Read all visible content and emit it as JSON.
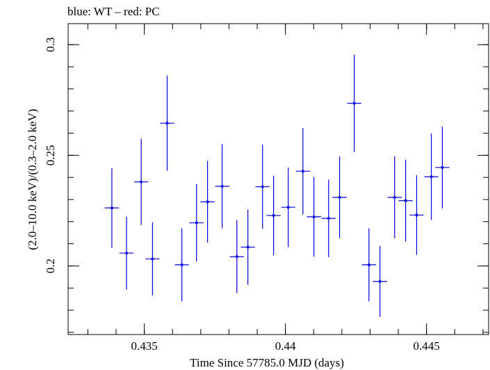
{
  "chart_data": {
    "type": "scatter",
    "title": "blue: WT – red: PC",
    "xlabel": "Time Since 57785.0 MJD (days)",
    "ylabel": "(2.0–10.0 keV)/(0.3–2.0 keV)",
    "xlim": [
      0.4323,
      0.4472
    ],
    "ylim": [
      0.169,
      0.3095
    ],
    "x_ticks": [
      {
        "value": 0.435,
        "label": "0.435"
      },
      {
        "value": 0.44,
        "label": "0.44"
      },
      {
        "value": 0.445,
        "label": "0.445"
      }
    ],
    "x_minor_step": 0.001,
    "y_ticks": [
      {
        "value": 0.2,
        "label": "0.2"
      },
      {
        "value": 0.25,
        "label": "0.25"
      },
      {
        "value": 0.3,
        "label": "0.3"
      }
    ],
    "y_minor_step": 0.01,
    "grid": false,
    "series": [
      {
        "color": "#0000dd",
        "x_half_width": 0.00025,
        "points": [
          {
            "x": 0.43385,
            "y": 0.2262,
            "yerr": 0.018
          },
          {
            "x": 0.43437,
            "y": 0.2058,
            "yerr": 0.0165
          },
          {
            "x": 0.43489,
            "y": 0.238,
            "yerr": 0.0195
          },
          {
            "x": 0.43529,
            "y": 0.2032,
            "yerr": 0.0165
          },
          {
            "x": 0.43581,
            "y": 0.2645,
            "yerr": 0.0215
          },
          {
            "x": 0.43633,
            "y": 0.2005,
            "yerr": 0.0165
          },
          {
            "x": 0.43685,
            "y": 0.2195,
            "yerr": 0.0175
          },
          {
            "x": 0.43724,
            "y": 0.229,
            "yerr": 0.0185
          },
          {
            "x": 0.43776,
            "y": 0.236,
            "yerr": 0.019
          },
          {
            "x": 0.43828,
            "y": 0.2042,
            "yerr": 0.0165
          },
          {
            "x": 0.43867,
            "y": 0.2085,
            "yerr": 0.017
          },
          {
            "x": 0.43919,
            "y": 0.2358,
            "yerr": 0.019
          },
          {
            "x": 0.43958,
            "y": 0.2228,
            "yerr": 0.018
          },
          {
            "x": 0.4401,
            "y": 0.2265,
            "yerr": 0.018
          },
          {
            "x": 0.44062,
            "y": 0.2428,
            "yerr": 0.0195
          },
          {
            "x": 0.44101,
            "y": 0.2222,
            "yerr": 0.018
          },
          {
            "x": 0.44153,
            "y": 0.2215,
            "yerr": 0.0175
          },
          {
            "x": 0.44192,
            "y": 0.231,
            "yerr": 0.0185
          },
          {
            "x": 0.44244,
            "y": 0.2735,
            "yerr": 0.022
          },
          {
            "x": 0.44296,
            "y": 0.2005,
            "yerr": 0.0165
          },
          {
            "x": 0.44335,
            "y": 0.193,
            "yerr": 0.016
          },
          {
            "x": 0.44387,
            "y": 0.231,
            "yerr": 0.0185
          },
          {
            "x": 0.44426,
            "y": 0.2295,
            "yerr": 0.0185
          },
          {
            "x": 0.44465,
            "y": 0.223,
            "yerr": 0.018
          },
          {
            "x": 0.44517,
            "y": 0.2403,
            "yerr": 0.0195
          },
          {
            "x": 0.44556,
            "y": 0.2445,
            "yerr": 0.0185
          }
        ]
      }
    ]
  }
}
